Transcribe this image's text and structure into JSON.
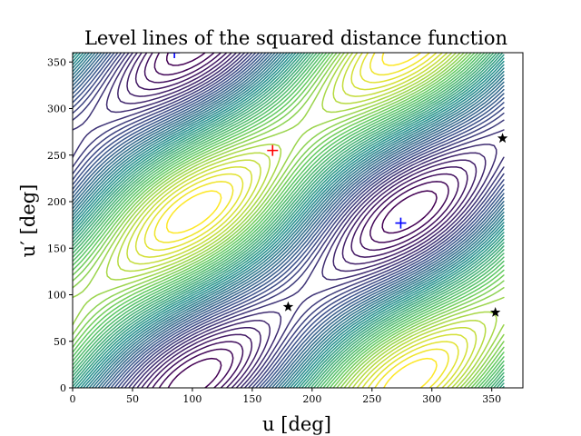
{
  "chart_data": {
    "type": "contour",
    "title": "Level lines of the squared distance function",
    "xlabel": "u [deg]",
    "ylabel": "u′ [deg]",
    "xlim": [
      0,
      376
    ],
    "ylim": [
      0,
      360
    ],
    "contour_domain_x": [
      0,
      360
    ],
    "xticks": [
      0,
      50,
      100,
      150,
      200,
      250,
      300,
      350
    ],
    "yticks": [
      0,
      50,
      100,
      150,
      200,
      250,
      300,
      350
    ],
    "colormap": [
      "#440154",
      "#3b528b",
      "#21918c",
      "#5ec962",
      "#fde725"
    ],
    "level_count": 46,
    "markers": [
      {
        "kind": "plus",
        "color": "#ff0000",
        "x": 167,
        "y": 255
      },
      {
        "kind": "plus",
        "color": "#0000ff",
        "x": 274,
        "y": 177
      },
      {
        "kind": "plus",
        "color": "#0000ff",
        "x": 85,
        "y": 360
      },
      {
        "kind": "star",
        "color": "#000000",
        "x": 180,
        "y": 87
      },
      {
        "kind": "star",
        "color": "#000000",
        "x": 359,
        "y": 268
      },
      {
        "kind": "star",
        "color": "#000000",
        "x": 353,
        "y": 81
      }
    ]
  }
}
